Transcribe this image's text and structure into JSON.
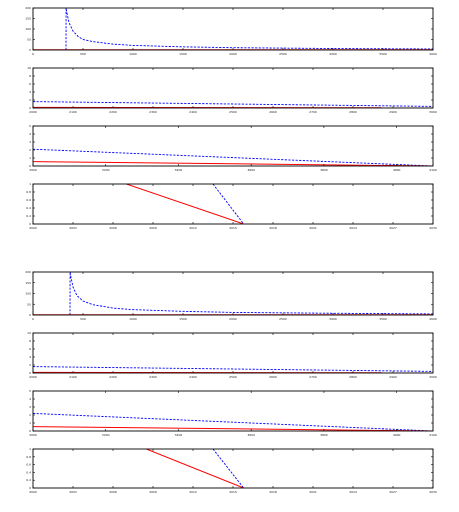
{
  "chart_data": [
    {
      "type": "line",
      "xlim": [
        0,
        4000
      ],
      "ylim": [
        0,
        200
      ],
      "xticks": [
        "0",
        "500",
        "1000",
        "1500",
        "2000",
        "2500",
        "3000",
        "3500",
        "4000"
      ],
      "yticks": [
        "0",
        "50",
        "100",
        "150",
        "200"
      ],
      "series": [
        {
          "style": "dashed",
          "color": "#0000ff",
          "x": [
            330,
            331,
            340,
            360,
            400,
            450,
            500,
            600,
            800,
            1000,
            1500,
            2000,
            3000,
            4000
          ],
          "y": [
            0,
            200,
            175,
            130,
            90,
            65,
            50,
            40,
            28,
            22,
            15,
            11,
            7,
            5
          ]
        },
        {
          "style": "solid",
          "color": "#ff0000",
          "x": [
            0,
            4000
          ],
          "y": [
            1,
            1
          ]
        }
      ]
    },
    {
      "type": "line",
      "xlim": [
        2000,
        3000
      ],
      "ylim": [
        0,
        10
      ],
      "xticks": [
        "2000",
        "2100",
        "2200",
        "2300",
        "2400",
        "2500",
        "2600",
        "2700",
        "2800",
        "2900",
        "3000"
      ],
      "yticks": [
        "0",
        "2",
        "4",
        "6",
        "8",
        "10"
      ],
      "series": [
        {
          "style": "dashed",
          "color": "#0000ff",
          "x": [
            2000,
            3000
          ],
          "y": [
            1.6,
            0.4
          ]
        },
        {
          "style": "solid",
          "color": "#ff0000",
          "x": [
            2000,
            3000
          ],
          "y": [
            0.15,
            0.05
          ]
        }
      ]
    },
    {
      "type": "line",
      "xlim": [
        3000,
        4100
      ],
      "ylim": [
        0,
        5
      ],
      "xticks": [
        "3000",
        "3200",
        "3400",
        "3600",
        "3800",
        "4000",
        "4100"
      ],
      "yticks": [
        "0",
        "1",
        "2",
        "3",
        "4",
        "5"
      ],
      "series": [
        {
          "style": "dashed",
          "color": "#0000ff",
          "x": [
            3000,
            4100
          ],
          "y": [
            2.1,
            0.0
          ]
        },
        {
          "style": "solid",
          "color": "#ff0000",
          "x": [
            3000,
            4100
          ],
          "y": [
            0.55,
            0.0
          ]
        }
      ]
    },
    {
      "type": "line",
      "xlim": [
        4000,
        4030
      ],
      "ylim": [
        0,
        1
      ],
      "xticks": [
        "4000",
        "4003",
        "4006",
        "4009",
        "4012",
        "4015",
        "4018",
        "4021",
        "4024",
        "4027",
        "4030"
      ],
      "yticks": [
        "0",
        "0.2",
        "0.4",
        "0.6",
        "0.8",
        "1"
      ],
      "series": [
        {
          "style": "dashed",
          "color": "#0000ff",
          "x": [
            4013.5,
            4015.8
          ],
          "y": [
            1,
            0
          ]
        },
        {
          "style": "solid",
          "color": "#ff0000",
          "x": [
            4007,
            4015.8
          ],
          "y": [
            1,
            0
          ]
        }
      ]
    },
    {
      "type": "line",
      "xlim": [
        0,
        4000
      ],
      "ylim": [
        0,
        200
      ],
      "xticks": [
        "0",
        "500",
        "1000",
        "1500",
        "2000",
        "2500",
        "3000",
        "3500",
        "4000"
      ],
      "yticks": [
        "0",
        "50",
        "100",
        "150",
        "200"
      ],
      "series": [
        {
          "style": "dashed",
          "color": "#0000ff",
          "x": [
            370,
            371,
            380,
            400,
            440,
            500,
            600,
            800,
            1000,
            1500,
            2000,
            3000,
            4000
          ],
          "y": [
            0,
            200,
            175,
            130,
            90,
            65,
            48,
            32,
            25,
            17,
            12,
            8,
            5
          ]
        },
        {
          "style": "solid",
          "color": "#ff0000",
          "x": [
            0,
            4000
          ],
          "y": [
            1,
            1
          ]
        }
      ]
    },
    {
      "type": "line",
      "xlim": [
        2000,
        3000
      ],
      "ylim": [
        0,
        10
      ],
      "xticks": [
        "2000",
        "2100",
        "2200",
        "2300",
        "2400",
        "2500",
        "2600",
        "2700",
        "2800",
        "2900",
        "3000"
      ],
      "yticks": [
        "0",
        "2",
        "4",
        "6",
        "8",
        "10"
      ],
      "series": [
        {
          "style": "dashed",
          "color": "#0000ff",
          "x": [
            2000,
            3000
          ],
          "y": [
            1.6,
            0.4
          ]
        },
        {
          "style": "solid",
          "color": "#ff0000",
          "x": [
            2000,
            3000
          ],
          "y": [
            0.15,
            0.05
          ]
        }
      ]
    },
    {
      "type": "line",
      "xlim": [
        3000,
        4100
      ],
      "ylim": [
        0,
        5
      ],
      "xticks": [
        "3000",
        "3200",
        "3400",
        "3600",
        "3800",
        "4000",
        "4100"
      ],
      "yticks": [
        "0",
        "1",
        "2",
        "3",
        "4",
        "5"
      ],
      "series": [
        {
          "style": "dashed",
          "color": "#0000ff",
          "x": [
            3000,
            4100
          ],
          "y": [
            2.2,
            0.0
          ]
        },
        {
          "style": "solid",
          "color": "#ff0000",
          "x": [
            3000,
            4100
          ],
          "y": [
            0.55,
            0.0
          ]
        }
      ]
    },
    {
      "type": "line",
      "xlim": [
        4000,
        4030
      ],
      "ylim": [
        0,
        1
      ],
      "xticks": [
        "4000",
        "4003",
        "4006",
        "4009",
        "4012",
        "4015",
        "4018",
        "4021",
        "4024",
        "4027",
        "4030"
      ],
      "yticks": [
        "0",
        "0.2",
        "0.4",
        "0.6",
        "0.8",
        "1"
      ],
      "series": [
        {
          "style": "dashed",
          "color": "#0000ff",
          "x": [
            4013.5,
            4015.8
          ],
          "y": [
            1,
            0
          ]
        },
        {
          "style": "solid",
          "color": "#ff0000",
          "x": [
            4008.5,
            4015.8
          ],
          "y": [
            1,
            0
          ]
        }
      ]
    }
  ]
}
